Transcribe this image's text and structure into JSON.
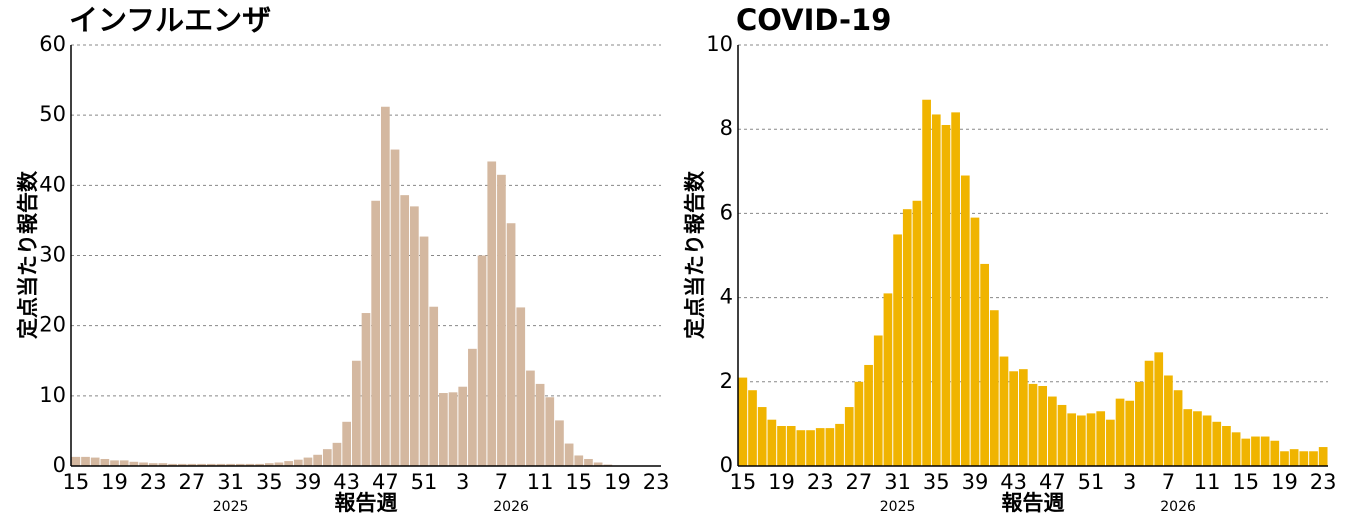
{
  "chart_data": [
    {
      "type": "bar",
      "title": "インフルエンザ",
      "ylabel": "定点当たり報告数",
      "xlabel": "報告週",
      "annotations": [
        "2025",
        "2026"
      ],
      "categories": [
        "15",
        null,
        null,
        null,
        "19",
        null,
        null,
        null,
        "23",
        null,
        null,
        null,
        "27",
        null,
        null,
        null,
        "31",
        null,
        null,
        null,
        "35",
        null,
        null,
        null,
        "39",
        null,
        null,
        null,
        "43",
        null,
        null,
        null,
        "47",
        null,
        null,
        null,
        "51",
        null,
        null,
        null,
        "3",
        null,
        null,
        null,
        "7",
        null,
        null,
        null,
        "11",
        null,
        null,
        null,
        "15",
        null,
        null,
        null,
        "19",
        null,
        null,
        null,
        "23"
      ],
      "values": [
        1.3,
        1.3,
        1.2,
        1.0,
        0.8,
        0.8,
        0.6,
        0.5,
        0.4,
        0.4,
        0.3,
        0.3,
        0.3,
        0.3,
        0.3,
        0.3,
        0.3,
        0.3,
        0.3,
        0.3,
        0.4,
        0.5,
        0.7,
        0.9,
        1.2,
        1.6,
        2.4,
        3.3,
        6.3,
        15.0,
        21.8,
        37.8,
        51.2,
        45.1,
        38.6,
        37.0,
        32.7,
        22.7,
        10.4,
        10.5,
        11.3,
        16.7,
        30.0,
        43.4,
        41.5,
        34.6,
        22.6,
        13.6,
        11.7,
        9.8,
        6.5,
        3.2,
        1.5,
        1.0,
        0.5,
        0.2,
        0,
        0,
        0,
        0,
        0
      ],
      "color": "#d4b8a0",
      "ylim": [
        0,
        60
      ],
      "yticks": [
        0,
        10,
        20,
        30,
        40,
        50,
        60
      ],
      "grid": true
    },
    {
      "type": "bar",
      "title": "COVID-19",
      "ylabel": "定点当たり報告数",
      "xlabel": "報告週",
      "annotations": [
        "2025",
        "2026"
      ],
      "categories": [
        "15",
        null,
        null,
        null,
        "19",
        null,
        null,
        null,
        "23",
        null,
        null,
        null,
        "27",
        null,
        null,
        null,
        "31",
        null,
        null,
        null,
        "35",
        null,
        null,
        null,
        "39",
        null,
        null,
        null,
        "43",
        null,
        null,
        null,
        "47",
        null,
        null,
        null,
        "51",
        null,
        null,
        null,
        "3",
        null,
        null,
        null,
        "7",
        null,
        null,
        null,
        "11",
        null,
        null,
        null,
        "15",
        null,
        null,
        null,
        "19",
        null,
        null,
        null,
        "23"
      ],
      "values": [
        2.1,
        1.8,
        1.4,
        1.1,
        0.95,
        0.95,
        0.85,
        0.85,
        0.9,
        0.9,
        1.0,
        1.4,
        2.0,
        2.4,
        3.1,
        4.1,
        5.5,
        6.1,
        6.3,
        8.7,
        8.35,
        8.1,
        8.4,
        6.9,
        5.9,
        4.8,
        3.7,
        2.6,
        2.25,
        2.3,
        1.95,
        1.9,
        1.65,
        1.45,
        1.25,
        1.2,
        1.25,
        1.3,
        1.1,
        1.6,
        1.55,
        2.0,
        2.5,
        2.7,
        2.15,
        1.8,
        1.35,
        1.3,
        1.2,
        1.05,
        0.95,
        0.8,
        0.65,
        0.7,
        0.7,
        0.6,
        0.35,
        0.4,
        0.35,
        0.35,
        0.45
      ],
      "color": "#f0b400",
      "ylim": [
        0,
        10
      ],
      "yticks": [
        0,
        2,
        4,
        6,
        8,
        10
      ],
      "grid": true
    }
  ]
}
